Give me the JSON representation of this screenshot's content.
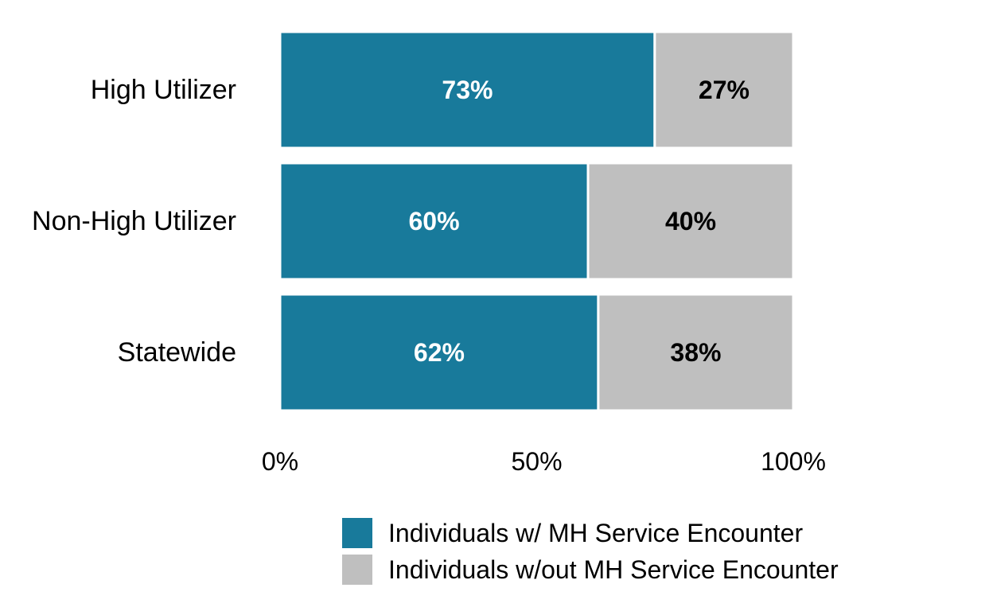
{
  "chart_data": {
    "type": "bar",
    "orientation": "horizontal",
    "stacked": true,
    "categories": [
      "High Utilizer",
      "Non-High Utilizer",
      "Statewide"
    ],
    "series": [
      {
        "name": "Individuals w/ MH Service Encounter",
        "color": "#187a9b",
        "label_color": "#ffffff",
        "values": [
          73,
          60,
          62
        ],
        "labels": [
          "73%",
          "60%",
          "62%"
        ]
      },
      {
        "name": "Individuals w/out MH Service Encounter",
        "color": "#bfbfbf",
        "label_color": "#000000",
        "values": [
          27,
          40,
          38
        ],
        "labels": [
          "27%",
          "40%",
          "38%"
        ]
      }
    ],
    "xlim": [
      0,
      100
    ],
    "xticks": [
      0,
      50,
      100
    ],
    "xtick_labels": [
      "0%",
      "50%",
      "100%"
    ],
    "grid": false,
    "legend_position": "bottom"
  }
}
